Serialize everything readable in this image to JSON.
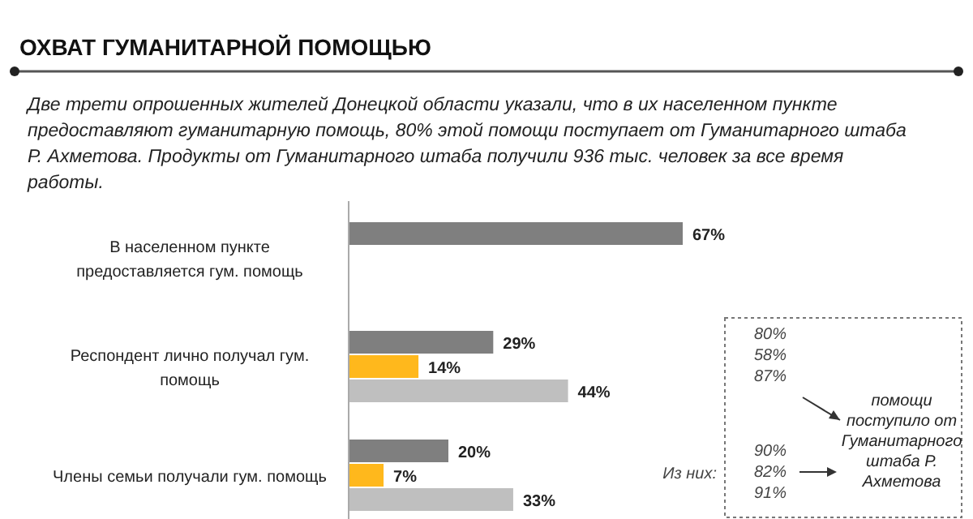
{
  "chart_data": {
    "type": "bar",
    "orientation": "horizontal",
    "title": "ОХВАТ ГУМАНИТАРНОЙ ПОМОЩЬЮ",
    "subtitle": "Две трети опрошенных жителей Донецкой области указали, что в их населенном пункте предоставляют гуманитарную помощь, 80% этой помощи поступает от Гуманитарного штаба Р. Ахметова. Продукты от Гуманитарного штаба получили 936 тыс. человек за все время работы.",
    "categories": [
      "В населенном пункте предоставляется гум. помощь",
      "Респондент лично получал гум. помощь",
      "Члены семьи получали гум. помощь"
    ],
    "series": [
      {
        "color": "#7f7f7f",
        "values": [
          67,
          29,
          20
        ],
        "value_labels": [
          "67%",
          "29%",
          "20%"
        ]
      },
      {
        "color": "#ffb81c",
        "values": [
          null,
          14,
          7
        ],
        "value_labels": [
          null,
          "14%",
          "7%"
        ]
      },
      {
        "color": "#bfbfbf",
        "values": [
          null,
          44,
          33
        ],
        "value_labels": [
          null,
          "44%",
          "33%"
        ]
      }
    ],
    "annotations": [
      "80%",
      "58%",
      "87%",
      "90%",
      "82%",
      "91%",
      "Из них:",
      "помощи поступило от Гуманитарного штаба Р. Ахметова"
    ]
  }
}
